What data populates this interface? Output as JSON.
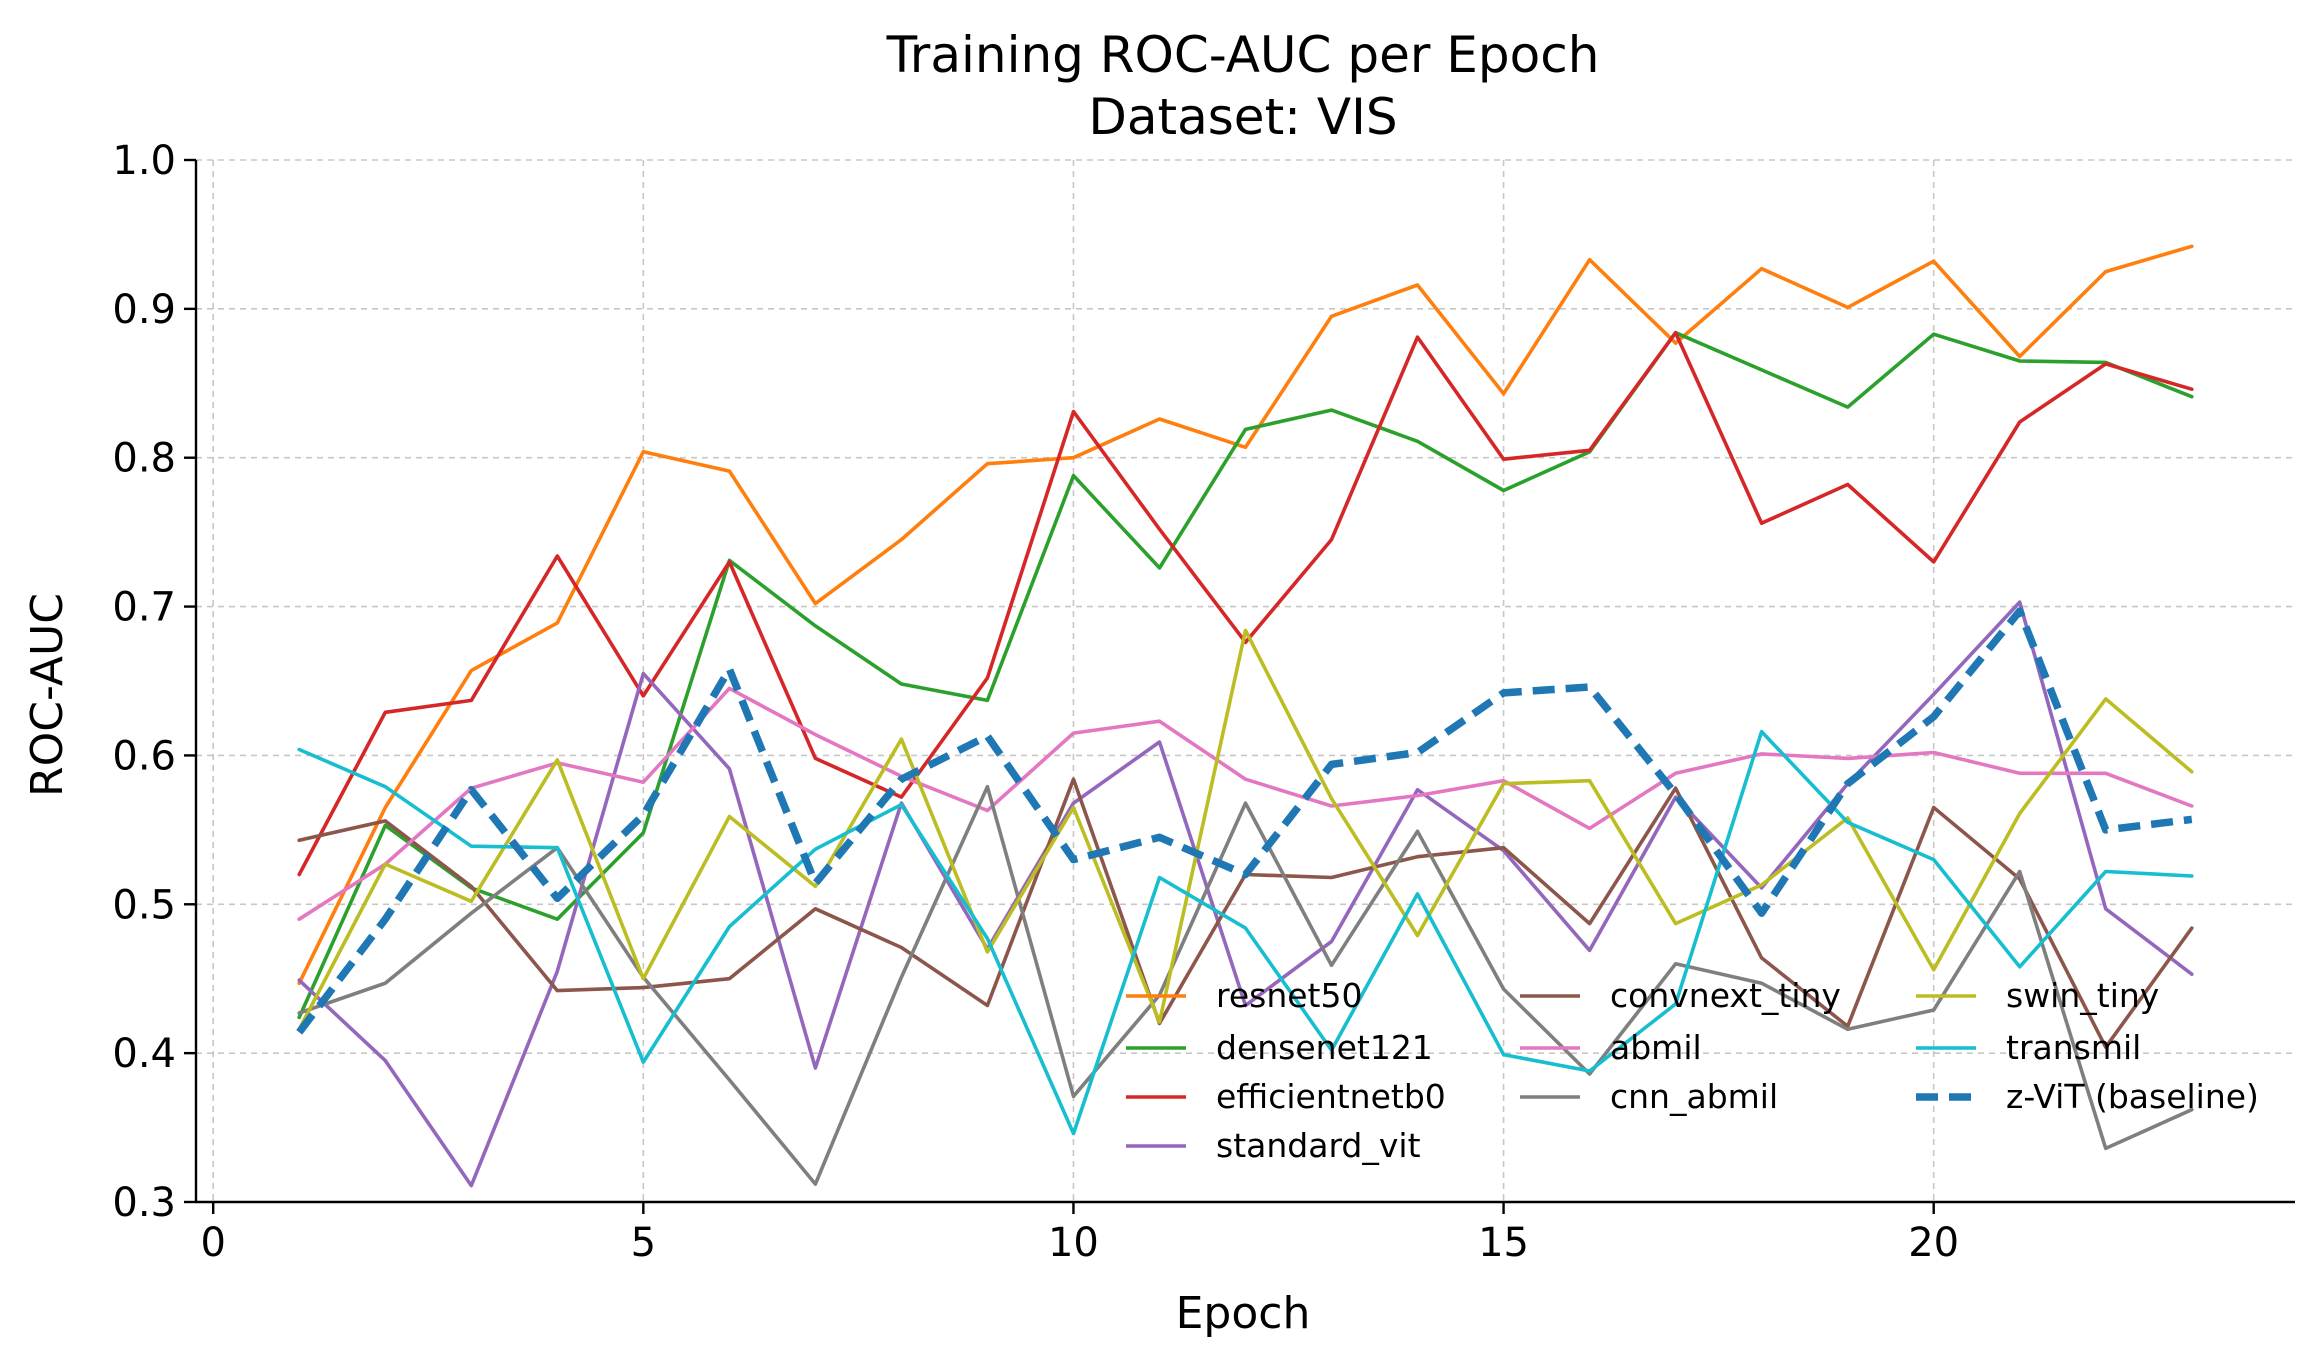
{
  "chart_data": {
    "type": "line",
    "title": "Training ROC-AUC per Epoch",
    "subtitle": "Dataset: VIS",
    "xlabel": "Epoch",
    "ylabel": "ROC-AUC",
    "xlim": [
      -0.2,
      24.2
    ],
    "ylim": [
      0.3,
      1.0
    ],
    "xticks": [
      0,
      5,
      10,
      15,
      20
    ],
    "yticks": [
      0.3,
      0.4,
      0.5,
      0.6,
      0.7,
      0.8,
      0.9,
      1.0
    ],
    "xtick_labels": [
      "0",
      "5",
      "10",
      "15",
      "20"
    ],
    "ytick_labels": [
      "0.3",
      "0.4",
      "0.5",
      "0.6",
      "0.7",
      "0.8",
      "0.9",
      "1.0"
    ],
    "grid": true,
    "legend_position": "lower-right",
    "x": [
      1,
      2,
      3,
      4,
      5,
      6,
      7,
      8,
      9,
      10,
      11,
      12,
      13,
      14,
      15,
      16,
      17,
      18,
      19,
      20,
      21,
      22,
      23
    ],
    "series": [
      {
        "name": "resnet50",
        "color": "#ff7f0e",
        "dashed": false,
        "values": [
          0.447,
          0.565,
          0.657,
          0.689,
          0.804,
          0.791,
          0.702,
          0.745,
          0.796,
          0.8,
          0.826,
          0.807,
          0.895,
          0.916,
          0.843,
          0.933,
          0.877,
          0.927,
          0.901,
          0.932,
          0.868,
          0.925,
          0.942
        ]
      },
      {
        "name": "densenet121",
        "color": "#2ca02c",
        "dashed": false,
        "values": [
          0.424,
          0.553,
          0.511,
          0.49,
          0.548,
          0.731,
          0.687,
          0.648,
          0.637,
          0.788,
          0.726,
          0.819,
          0.832,
          0.811,
          0.778,
          0.804,
          0.884,
          0.859,
          0.834,
          0.883,
          0.865,
          0.864,
          0.841
        ]
      },
      {
        "name": "efficientnetb0",
        "color": "#d62728",
        "dashed": false,
        "values": [
          0.52,
          0.629,
          0.637,
          0.734,
          0.64,
          0.73,
          0.598,
          0.572,
          0.652,
          0.831,
          0.752,
          0.676,
          0.745,
          0.881,
          0.799,
          0.805,
          0.884,
          0.756,
          0.782,
          0.73,
          0.824,
          0.863,
          0.846
        ]
      },
      {
        "name": "standard_vit",
        "color": "#9467bd",
        "dashed": false,
        "values": [
          0.449,
          0.395,
          0.311,
          0.455,
          0.655,
          0.591,
          0.39,
          0.568,
          0.47,
          0.568,
          0.609,
          0.432,
          0.475,
          0.577,
          0.536,
          0.469,
          0.572,
          0.511,
          0.581,
          0.641,
          0.703,
          0.497,
          0.453
        ]
      },
      {
        "name": "convnext_tiny",
        "color": "#8c564b",
        "dashed": false,
        "values": [
          0.543,
          0.556,
          0.512,
          0.442,
          0.444,
          0.45,
          0.497,
          0.471,
          0.432,
          0.584,
          0.42,
          0.52,
          0.518,
          0.532,
          0.538,
          0.487,
          0.578,
          0.464,
          0.418,
          0.565,
          0.517,
          0.404,
          0.484
        ]
      },
      {
        "name": "abmil",
        "color": "#e377c2",
        "dashed": false,
        "values": [
          0.49,
          0.527,
          0.578,
          0.595,
          0.582,
          0.645,
          0.614,
          0.586,
          0.563,
          0.615,
          0.623,
          0.584,
          0.566,
          0.573,
          0.583,
          0.551,
          0.588,
          0.601,
          0.598,
          0.602,
          0.588,
          0.588,
          0.566
        ]
      },
      {
        "name": "cnn_abmil",
        "color": "#7f7f7f",
        "dashed": false,
        "values": [
          0.427,
          0.447,
          0.494,
          0.538,
          0.451,
          0.382,
          0.312,
          0.451,
          0.579,
          0.371,
          0.439,
          0.568,
          0.459,
          0.549,
          0.443,
          0.386,
          0.46,
          0.447,
          0.416,
          0.429,
          0.522,
          0.336,
          0.362
        ]
      },
      {
        "name": "swin_tiny",
        "color": "#bcbd22",
        "dashed": false,
        "values": [
          0.416,
          0.527,
          0.502,
          0.597,
          0.45,
          0.559,
          0.512,
          0.611,
          0.468,
          0.565,
          0.421,
          0.684,
          0.571,
          0.479,
          0.581,
          0.583,
          0.487,
          0.513,
          0.558,
          0.456,
          0.561,
          0.638,
          0.589
        ]
      },
      {
        "name": "transmil",
        "color": "#17becf",
        "dashed": false,
        "values": [
          0.604,
          0.579,
          0.539,
          0.538,
          0.394,
          0.485,
          0.537,
          0.567,
          0.477,
          0.346,
          0.518,
          0.484,
          0.402,
          0.507,
          0.399,
          0.388,
          0.433,
          0.616,
          0.555,
          0.53,
          0.458,
          0.522,
          0.519
        ]
      },
      {
        "name": "z-ViT (baseline)",
        "color": "#1f77b4",
        "dashed": true,
        "values": [
          0.414,
          0.49,
          0.577,
          0.504,
          0.56,
          0.658,
          0.514,
          0.584,
          0.613,
          0.53,
          0.545,
          0.52,
          0.594,
          0.602,
          0.642,
          0.646,
          0.574,
          0.494,
          0.581,
          0.626,
          0.697,
          0.55,
          0.557
        ]
      }
    ],
    "legend_order": [
      0,
      4,
      7,
      1,
      5,
      8,
      2,
      6,
      9,
      3
    ]
  }
}
